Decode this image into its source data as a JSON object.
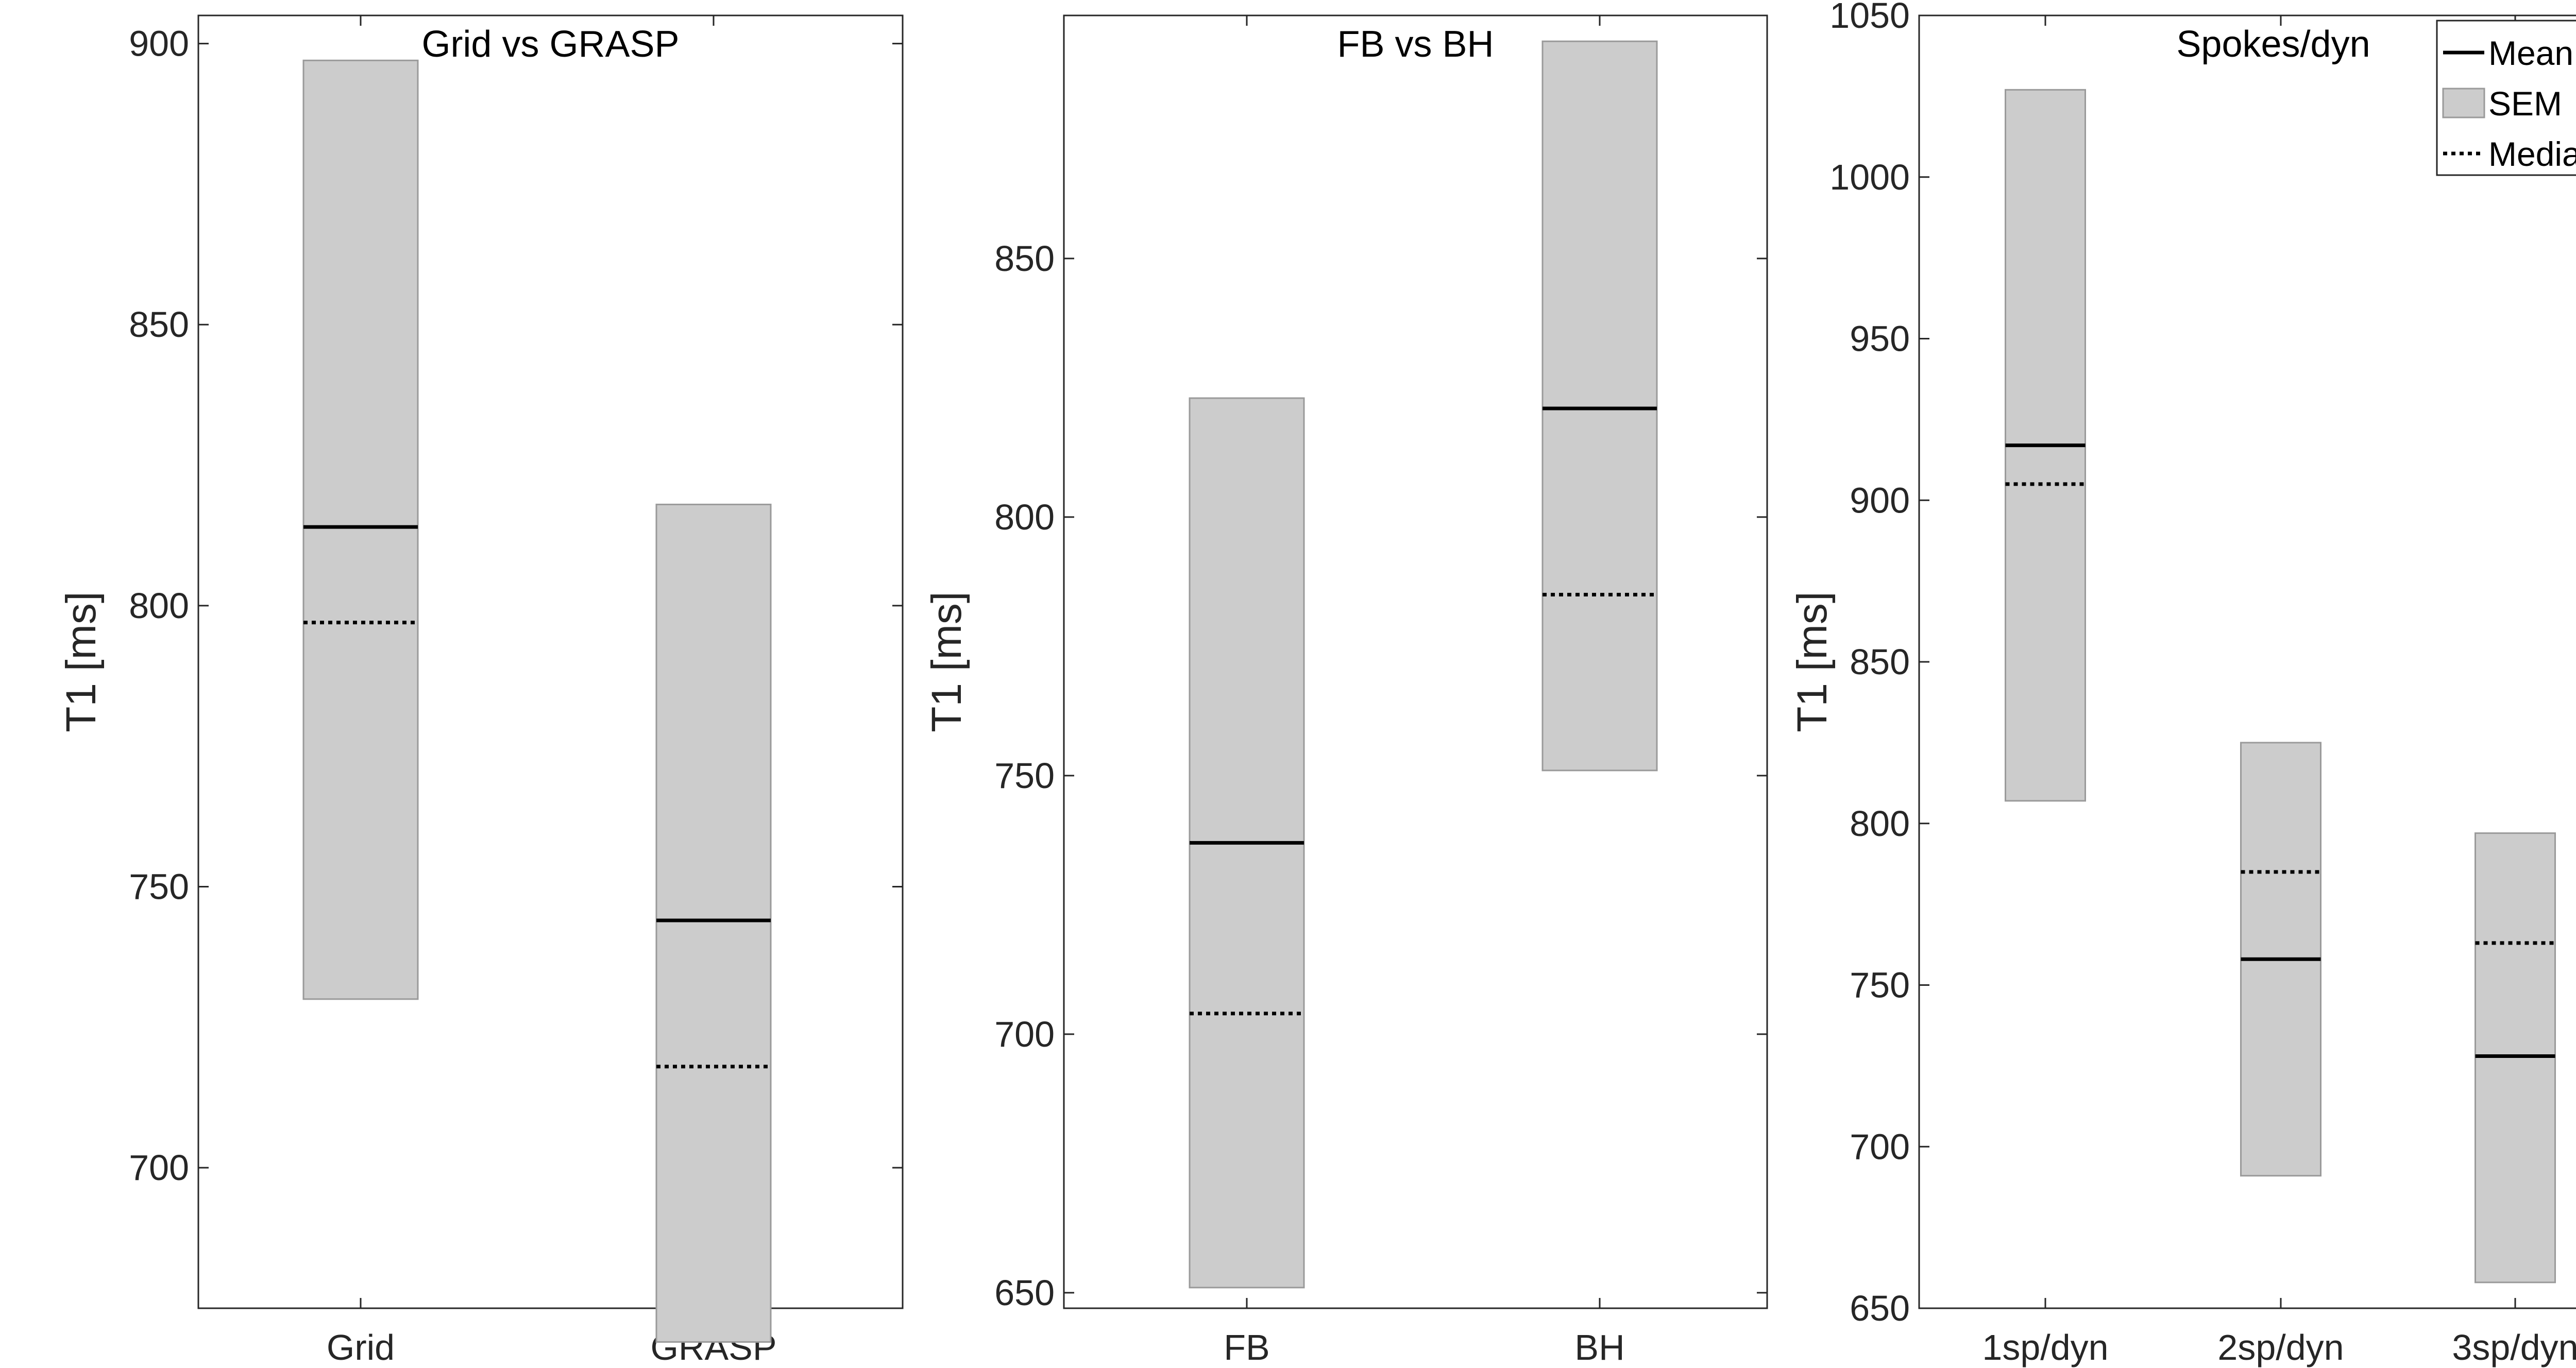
{
  "chart_data": [
    {
      "type": "box",
      "title": "Grid vs GRASP",
      "xlabel": "",
      "ylabel": "T1 [ms]",
      "ylim": [
        675,
        905
      ],
      "yticks": [
        700,
        750,
        800,
        850,
        900
      ],
      "categories": [
        "Grid",
        "GRASP"
      ],
      "series": [
        {
          "name": "Mean",
          "values": [
            814,
            744
          ]
        },
        {
          "name": "SEM",
          "values": [
            [
              730,
              897
            ],
            [
              669,
              818
            ]
          ]
        },
        {
          "name": "Median",
          "values": [
            797,
            718
          ]
        }
      ]
    },
    {
      "type": "box",
      "title": "FB vs BH",
      "xlabel": "",
      "ylabel": "T1 [ms]",
      "ylim": [
        647,
        897
      ],
      "yticks": [
        650,
        700,
        750,
        800,
        850
      ],
      "categories": [
        "FB",
        "BH"
      ],
      "series": [
        {
          "name": "Mean",
          "values": [
            737,
            821
          ]
        },
        {
          "name": "SEM",
          "values": [
            [
              651,
              823
            ],
            [
              751,
              892
            ]
          ]
        },
        {
          "name": "Median",
          "values": [
            704,
            785
          ]
        }
      ]
    },
    {
      "type": "box",
      "title": "Spokes/dyn",
      "xlabel": "",
      "ylabel": "T1 [ms]",
      "ylim": [
        650,
        1050
      ],
      "yticks": [
        650,
        700,
        750,
        800,
        850,
        900,
        950,
        1000,
        1050
      ],
      "categories": [
        "1sp/dyn",
        "2sp/dyn",
        "3sp/dyn"
      ],
      "series": [
        {
          "name": "Mean",
          "values": [
            917,
            758,
            728
          ]
        },
        {
          "name": "SEM",
          "values": [
            [
              807,
              1027
            ],
            [
              691,
              825
            ],
            [
              658,
              797
            ]
          ]
        },
        {
          "name": "Median",
          "values": [
            905,
            785,
            763
          ]
        }
      ],
      "legend": {
        "position": "top-right",
        "entries": [
          "Mean",
          "SEM",
          "Median"
        ]
      }
    }
  ],
  "colors": {
    "sem_fill": "#cccccc",
    "sem_edge": "#9a9a9a",
    "line": "#000000",
    "axis": "#262626"
  }
}
